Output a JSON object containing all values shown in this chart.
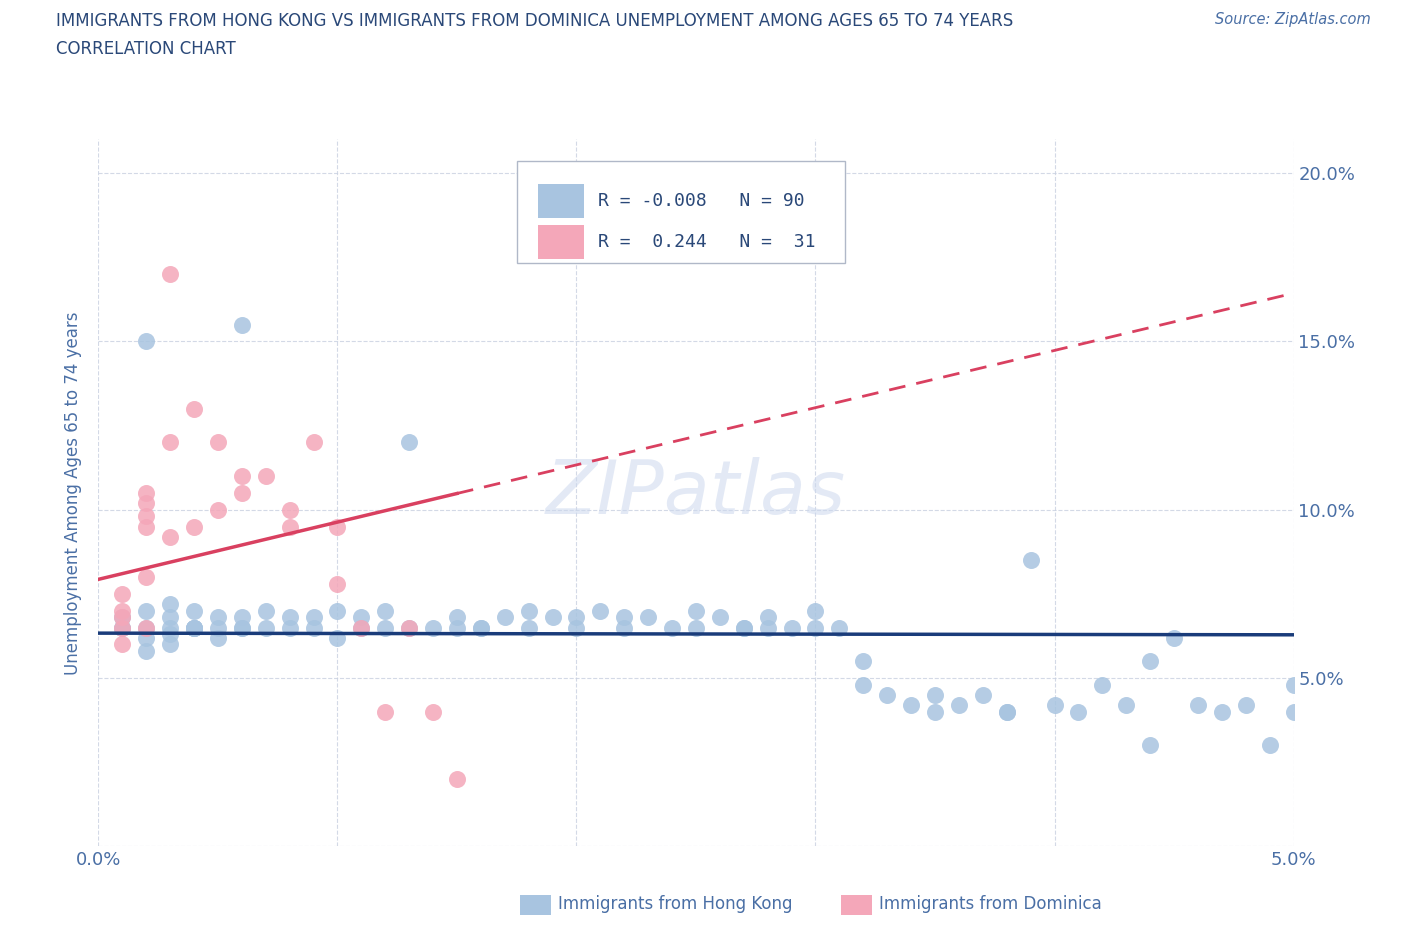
{
  "title_line1": "IMMIGRANTS FROM HONG KONG VS IMMIGRANTS FROM DOMINICA UNEMPLOYMENT AMONG AGES 65 TO 74 YEARS",
  "title_line2": "CORRELATION CHART",
  "source_text": "Source: ZipAtlas.com",
  "ylabel": "Unemployment Among Ages 65 to 74 years",
  "xlim": [
    0.0,
    0.05
  ],
  "ylim": [
    0.0,
    0.21
  ],
  "ytick_values": [
    0.0,
    0.05,
    0.1,
    0.15,
    0.2
  ],
  "ytick_labels": [
    "",
    "5.0%",
    "10.0%",
    "15.0%",
    "20.0%"
  ],
  "xtick_values": [
    0.0,
    0.01,
    0.02,
    0.03,
    0.04,
    0.05
  ],
  "xtick_labels": [
    "0.0%",
    "",
    "",
    "",
    "",
    "5.0%"
  ],
  "hk_color": "#a8c4e0",
  "dom_color": "#f4a7b9",
  "hk_line_color": "#1a3c7a",
  "dom_line_color": "#d94060",
  "watermark_color": "#ccd8ee",
  "title_color": "#2a4878",
  "axis_color": "#4a6fa5",
  "legend_R_hk": "-0.008",
  "legend_N_hk": "90",
  "legend_R_dom": "0.244",
  "legend_N_dom": "31",
  "hk_x": [
    0.001,
    0.001,
    0.001,
    0.002,
    0.002,
    0.002,
    0.002,
    0.003,
    0.003,
    0.003,
    0.003,
    0.003,
    0.004,
    0.004,
    0.004,
    0.004,
    0.005,
    0.005,
    0.005,
    0.006,
    0.006,
    0.006,
    0.007,
    0.007,
    0.008,
    0.008,
    0.009,
    0.009,
    0.01,
    0.01,
    0.011,
    0.011,
    0.012,
    0.012,
    0.013,
    0.013,
    0.014,
    0.015,
    0.015,
    0.016,
    0.016,
    0.017,
    0.018,
    0.018,
    0.019,
    0.02,
    0.02,
    0.021,
    0.022,
    0.022,
    0.023,
    0.024,
    0.025,
    0.025,
    0.026,
    0.027,
    0.027,
    0.028,
    0.028,
    0.029,
    0.03,
    0.03,
    0.031,
    0.032,
    0.032,
    0.033,
    0.034,
    0.035,
    0.035,
    0.036,
    0.037,
    0.038,
    0.038,
    0.039,
    0.04,
    0.041,
    0.042,
    0.043,
    0.044,
    0.044,
    0.045,
    0.046,
    0.047,
    0.048,
    0.049,
    0.05,
    0.05,
    0.002,
    0.004,
    0.006
  ],
  "hk_y": [
    0.065,
    0.065,
    0.068,
    0.07,
    0.062,
    0.065,
    0.058,
    0.065,
    0.063,
    0.068,
    0.06,
    0.072,
    0.065,
    0.065,
    0.07,
    0.065,
    0.065,
    0.062,
    0.068,
    0.065,
    0.068,
    0.065,
    0.07,
    0.065,
    0.065,
    0.068,
    0.068,
    0.065,
    0.07,
    0.062,
    0.065,
    0.068,
    0.065,
    0.07,
    0.065,
    0.12,
    0.065,
    0.065,
    0.068,
    0.065,
    0.065,
    0.068,
    0.07,
    0.065,
    0.068,
    0.068,
    0.065,
    0.07,
    0.065,
    0.068,
    0.068,
    0.065,
    0.07,
    0.065,
    0.068,
    0.065,
    0.065,
    0.065,
    0.068,
    0.065,
    0.065,
    0.07,
    0.065,
    0.055,
    0.048,
    0.045,
    0.042,
    0.045,
    0.04,
    0.042,
    0.045,
    0.04,
    0.04,
    0.085,
    0.042,
    0.04,
    0.048,
    0.042,
    0.055,
    0.03,
    0.062,
    0.042,
    0.04,
    0.042,
    0.03,
    0.04,
    0.048,
    0.15,
    0.065,
    0.155
  ],
  "dom_x": [
    0.001,
    0.001,
    0.001,
    0.001,
    0.002,
    0.002,
    0.002,
    0.002,
    0.002,
    0.003,
    0.003,
    0.003,
    0.004,
    0.004,
    0.005,
    0.005,
    0.006,
    0.006,
    0.007,
    0.008,
    0.008,
    0.009,
    0.01,
    0.01,
    0.011,
    0.012,
    0.013,
    0.014,
    0.015,
    0.001,
    0.002
  ],
  "dom_y": [
    0.065,
    0.068,
    0.07,
    0.075,
    0.095,
    0.098,
    0.102,
    0.105,
    0.08,
    0.092,
    0.12,
    0.17,
    0.13,
    0.095,
    0.1,
    0.12,
    0.105,
    0.11,
    0.11,
    0.1,
    0.095,
    0.12,
    0.095,
    0.078,
    0.065,
    0.04,
    0.065,
    0.04,
    0.02,
    0.06,
    0.065
  ]
}
